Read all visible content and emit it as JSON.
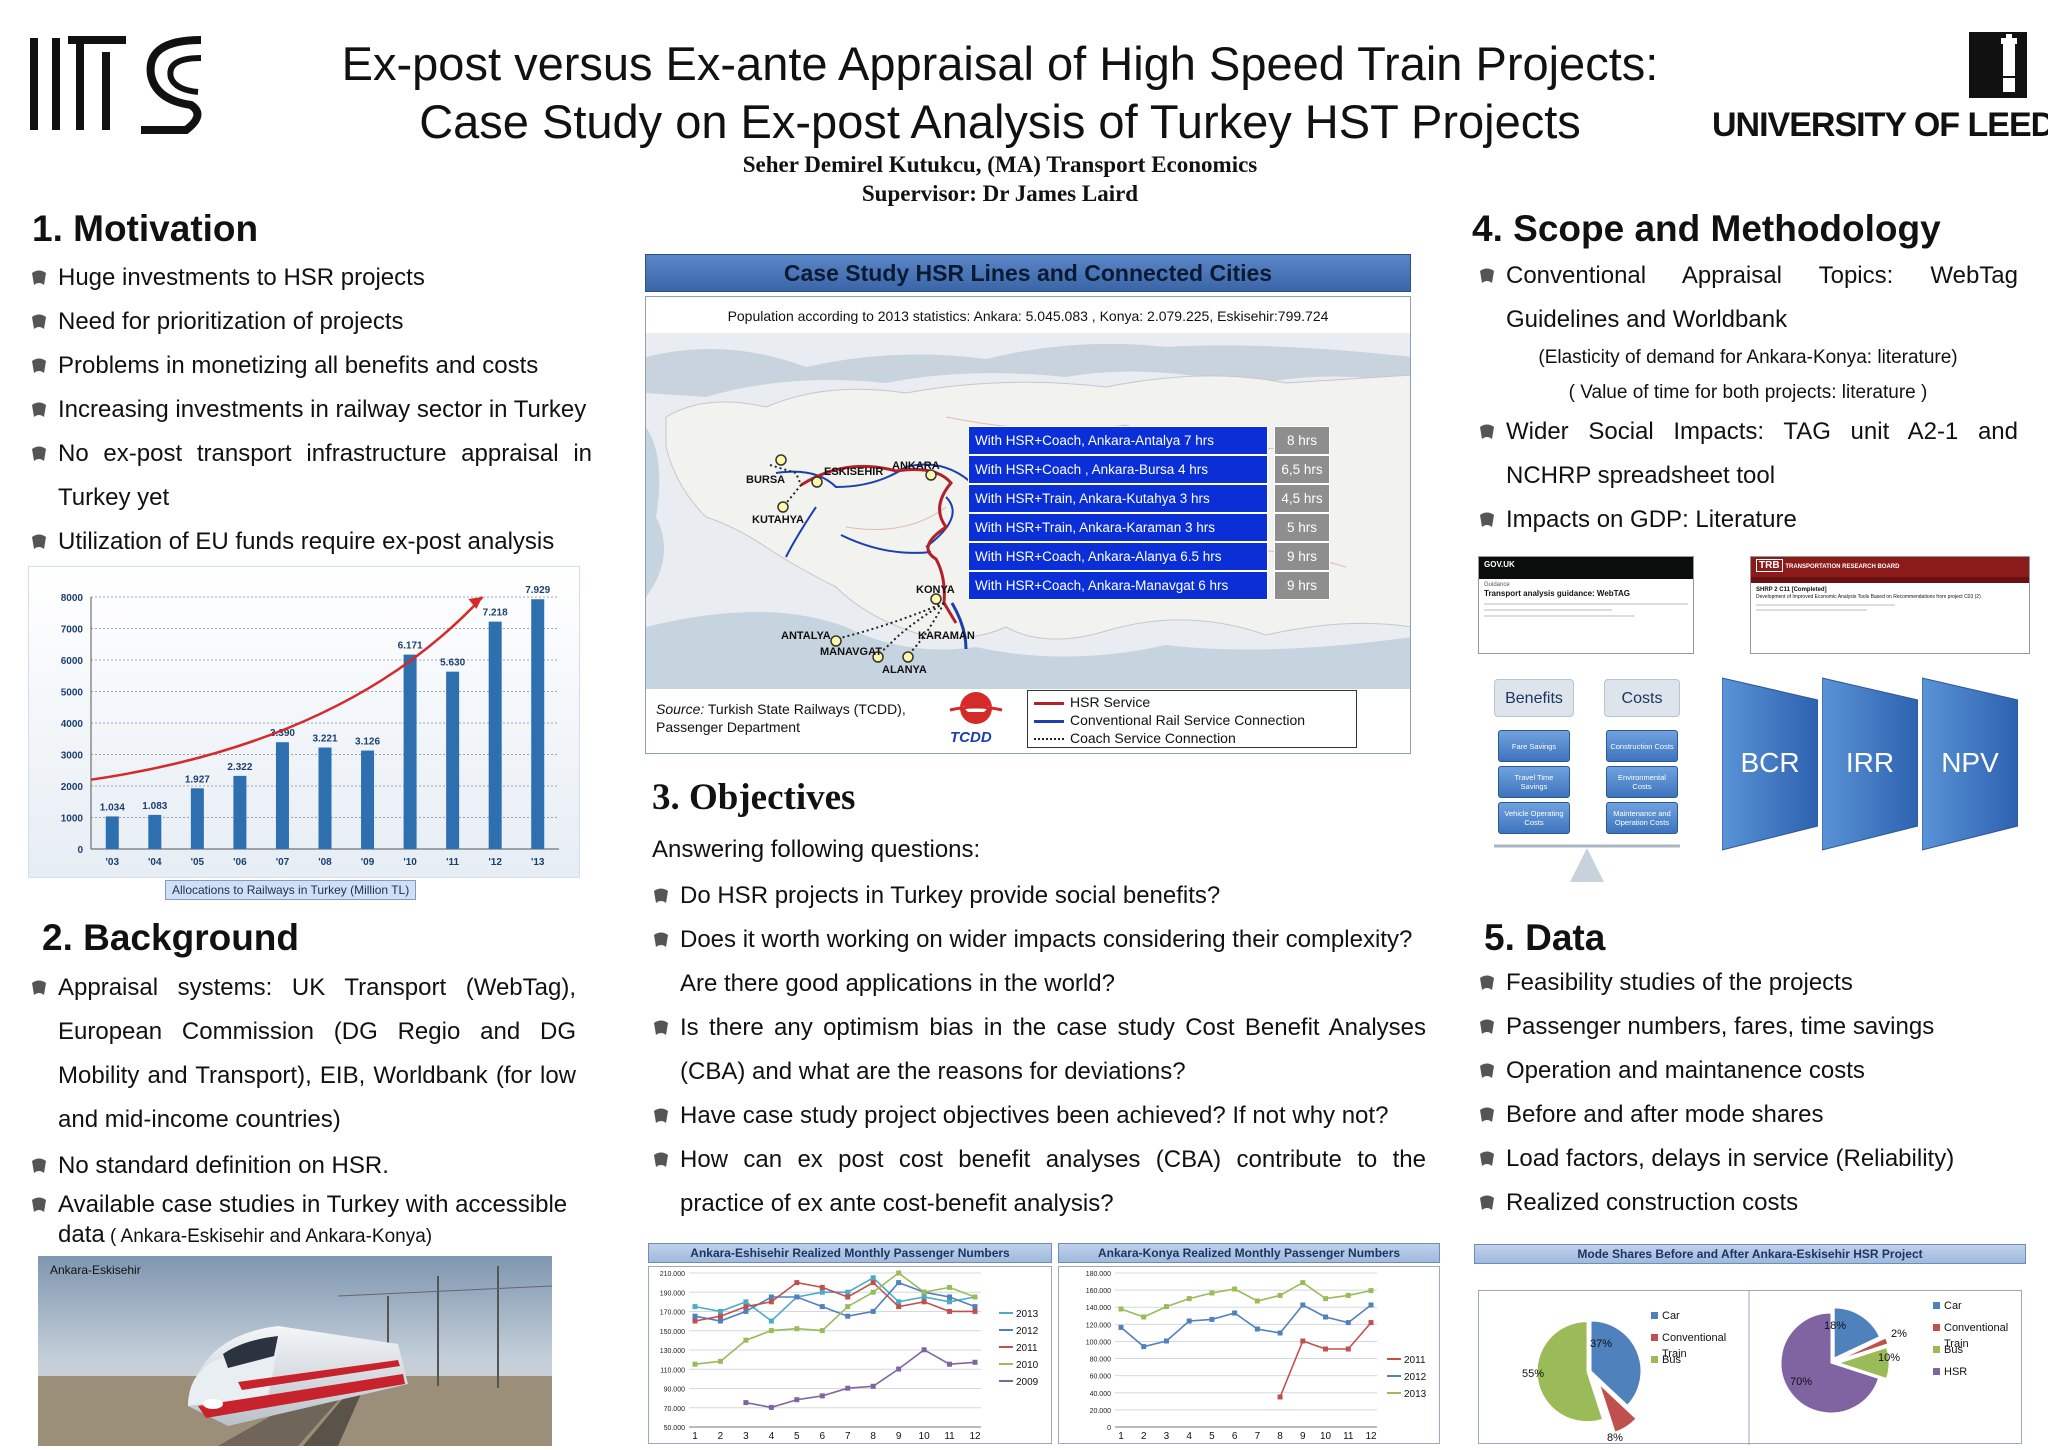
{
  "header": {
    "logo_left": "ITS",
    "title_line1": "Ex-post versus Ex-ante Appraisal of High Speed Train Projects:",
    "title_line2": "Case Study on Ex-post Analysis of Turkey HST Projects",
    "author": "Seher Demirel Kutukcu, (MA) Transport Economics",
    "supervisor": "Supervisor: Dr James Laird",
    "logo_right": "UNIVERSITY OF LEEDS"
  },
  "motivation": {
    "title": "1. Motivation",
    "items": [
      "Huge investments to HSR projects",
      "Need for prioritization of projects",
      "Problems in monetizing all benefits and costs",
      "Increasing investments in railway sector in Turkey",
      "No ex-post transport infrastructure appraisal in Turkey yet",
      "Utilization of EU funds require ex-post analysis"
    ],
    "chart_caption": "Allocations to Railways in Turkey (Million TL)"
  },
  "background": {
    "title": "2. Background",
    "items": [
      "Appraisal systems: UK Transport (WebTag), European Commission (DG Regio and DG Mobility and Transport), EIB, Worldbank (for low and mid-income countries)",
      "No standard definition on HSR."
    ],
    "item3_main": "Available case studies in Turkey with accessible data",
    "item3_paren": " ( Ankara-Eskisehir and Ankara-Konya)",
    "photo_label": "Ankara-Eskisehir"
  },
  "map": {
    "title": "Case Study HSR Lines and Connected Cities",
    "population": "Population according to 2013 statistics: Ankara: 5.045.083 , Konya: 2.079.225, Eskisehir:799.724",
    "cities": [
      "BURSA",
      "ESKISEHIR",
      "ANKARA",
      "KUTAHYA",
      "KONYA",
      "ANTALYA",
      "MANAVGAT",
      "ALANYA",
      "KARAMAN"
    ],
    "routes": [
      {
        "label": "With HSR+Coach, Ankara-Antalya   7 hrs",
        "before": "8 hrs"
      },
      {
        "label": "With HSR+Coach , Ankara-Bursa     4 hrs",
        "before": "6,5 hrs"
      },
      {
        "label": "With HSR+Train, Ankara-Kutahya  3 hrs",
        "before": "4,5 hrs"
      },
      {
        "label": "With HSR+Train, Ankara-Karaman 3 hrs",
        "before": "5 hrs"
      },
      {
        "label": "With HSR+Coach, Ankara-Alanya 6.5 hrs",
        "before": "9 hrs"
      },
      {
        "label": "With HSR+Coach, Ankara-Manavgat  6 hrs",
        "before": "9 hrs"
      }
    ],
    "source_label": "Source:",
    "source_text": " Turkish State Railways (TCDD),",
    "source_text2": "Passenger Department",
    "tcdd": "TCDD",
    "legend": [
      "HSR Service",
      "Conventional Rail Service Connection",
      "Coach Service Connection"
    ],
    "colors": {
      "hsr": "#b3202a",
      "conv": "#1b3fae",
      "coach": "#222222"
    }
  },
  "objectives": {
    "title": "3. Objectives",
    "intro": "Answering following questions:",
    "items": [
      "Do HSR projects in Turkey provide social benefits?",
      "Does it worth working on wider impacts considering their complexity? Are there good applications in the world?",
      "Is there any optimism bias in the case study Cost Benefit Analyses (CBA) and what are the reasons for deviations?",
      "Have case study project objectives been achieved? If not why not?",
      "How can ex post cost benefit analyses (CBA) contribute to the practice of ex ante cost-benefit analysis?"
    ]
  },
  "scope": {
    "title": "4. Scope and Methodology",
    "item1": "Conventional Appraisal Topics: WebTag Guidelines and Worldbank",
    "sub1": "(Elasticity of demand for Ankara-Konya: literature)",
    "sub2": "( Value of time for both projects: literature )",
    "item2": "Wider Social Impacts: TAG unit A2-1 and NCHRP spreadsheet tool",
    "item3": "Impacts on GDP: Literature",
    "gov_logo": "GOV.UK",
    "gov_guidance": "Guidance",
    "gov_doc": "Transport analysis guidance: WebTAG",
    "trb_logo": "TRB",
    "trb_name": "TRANSPORTATION RESEARCH BOARD",
    "trb_doc": "SHRP 2 C11 [Completed]",
    "trb_doc2": "Development of Improved Economic Analysis Tools Based on Recommendations from project C03 (2)",
    "benefits_header": "Benefits",
    "costs_header": "Costs",
    "benefits": [
      "Fare Savings",
      "Travel Time Savings",
      "Vehicle Operating Costs"
    ],
    "costs": [
      "Construction Costs",
      "Environmental Costs",
      "Maintenance and Operation Costs"
    ],
    "indicators": [
      "BCR",
      "IRR",
      "NPV"
    ]
  },
  "data_section": {
    "title": "5. Data",
    "items": [
      "Feasibility studies of the projects",
      "Passenger numbers, fares, time savings",
      "Operation and maintanence costs",
      "Before and after mode shares",
      "Load factors, delays in service (Reliability)",
      "Realized construction costs"
    ]
  },
  "chart_data": [
    {
      "type": "bar",
      "title": "",
      "caption": "Allocations to Railways in Turkey (Million TL)",
      "categories": [
        "'03",
        "'04",
        "'05",
        "'06",
        "'07",
        "'08",
        "'09",
        "'10",
        "'11",
        "'12",
        "'13"
      ],
      "values": [
        1034,
        1083,
        1927,
        2322,
        3390,
        3221,
        3126,
        6171,
        5630,
        7218,
        7929
      ],
      "value_labels": [
        "1.034",
        "1.083",
        "1.927",
        "2.322",
        "3.390",
        "3.221",
        "3.126",
        "6.171",
        "5.630",
        "7.218",
        "7.929"
      ],
      "yticks": [
        0,
        1000,
        2000,
        3000,
        4000,
        5000,
        6000,
        7000,
        8000
      ],
      "ylim": [
        0,
        8000
      ],
      "grid": true,
      "trend_arrow": true,
      "colors": {
        "bar": "#2e6fb0",
        "arrow": "#d42a2a"
      }
    },
    {
      "type": "line",
      "title": "Ankara-Eshisehir Realized Monthly Passenger Numbers",
      "x": [
        1,
        2,
        3,
        4,
        5,
        6,
        7,
        8,
        9,
        10,
        11,
        12
      ],
      "ylim": [
        60000,
        210000
      ],
      "ytick_labels": [
        "210.000",
        "190.000",
        "170.000",
        "150.000",
        "130.000",
        "110.000",
        "90.000",
        "70.000",
        "50.000"
      ],
      "legend_position": "right",
      "series": [
        {
          "name": "2013",
          "color": "#4bacc6",
          "values": [
            175000,
            170000,
            180000,
            160000,
            185000,
            190000,
            190000,
            205000,
            180000,
            185000,
            180000,
            185000
          ]
        },
        {
          "name": "2012",
          "color": "#4f81bd",
          "values": [
            165000,
            160000,
            170000,
            185000,
            185000,
            175000,
            165000,
            170000,
            200000,
            190000,
            185000,
            175000
          ]
        },
        {
          "name": "2011",
          "color": "#c0504d",
          "values": [
            160000,
            165000,
            175000,
            180000,
            200000,
            195000,
            185000,
            200000,
            175000,
            180000,
            170000,
            170000
          ]
        },
        {
          "name": "2010",
          "color": "#9bbb59",
          "values": [
            115000,
            118000,
            140000,
            150000,
            152000,
            150000,
            175000,
            190000,
            210000,
            190000,
            195000,
            185000
          ]
        },
        {
          "name": "2009",
          "color": "#8064a2",
          "values": [
            null,
            null,
            75000,
            70000,
            78000,
            82000,
            90000,
            92000,
            110000,
            130000,
            115000,
            117000
          ]
        }
      ]
    },
    {
      "type": "line",
      "title": "Ankara-Konya Realized Monthly Passenger Numbers",
      "x": [
        1,
        2,
        3,
        4,
        5,
        6,
        7,
        8,
        9,
        10,
        11,
        12
      ],
      "ylim": [
        0,
        180000
      ],
      "ytick_labels": [
        "180.000",
        "160.000",
        "140.000",
        "120.000",
        "100.000",
        "80.000",
        "60.000",
        "40.000",
        "20.000",
        "0"
      ],
      "legend_position": "right",
      "series": [
        {
          "name": "2011",
          "color": "#c0504d",
          "values": [
            null,
            null,
            null,
            null,
            null,
            null,
            null,
            25000,
            95000,
            85000,
            85000,
            118000
          ]
        },
        {
          "name": "2012",
          "color": "#4f81bd",
          "values": [
            112000,
            88000,
            95000,
            120000,
            122000,
            130000,
            110000,
            105000,
            140000,
            125000,
            118000,
            140000
          ]
        },
        {
          "name": "2013",
          "color": "#9bbb59",
          "values": [
            135000,
            125000,
            138000,
            148000,
            155000,
            160000,
            145000,
            152000,
            168000,
            148000,
            152000,
            158000
          ]
        }
      ]
    },
    {
      "type": "pie",
      "title": "Mode Shares Before and After Ankara-Eskisehir HSR Project",
      "subcharts": [
        {
          "name": "before",
          "slices": [
            {
              "label": "Car",
              "value": 37,
              "color": "#4f81bd"
            },
            {
              "label": "Conventional Train",
              "value": 8,
              "color": "#c0504d"
            },
            {
              "label": "Bus",
              "value": 55,
              "color": "#9bbb59"
            }
          ]
        },
        {
          "name": "after",
          "slices": [
            {
              "label": "Car",
              "value": 18,
              "color": "#4f81bd"
            },
            {
              "label": "Conventional Train",
              "value": 2,
              "color": "#c0504d"
            },
            {
              "label": "Bus",
              "value": 10,
              "color": "#9bbb59"
            },
            {
              "label": "HSR",
              "value": 70,
              "color": "#8064a2"
            }
          ]
        }
      ],
      "labels": [
        "37%",
        "55%",
        "8%",
        "18%",
        "2%",
        "10%",
        "70%"
      ]
    }
  ]
}
